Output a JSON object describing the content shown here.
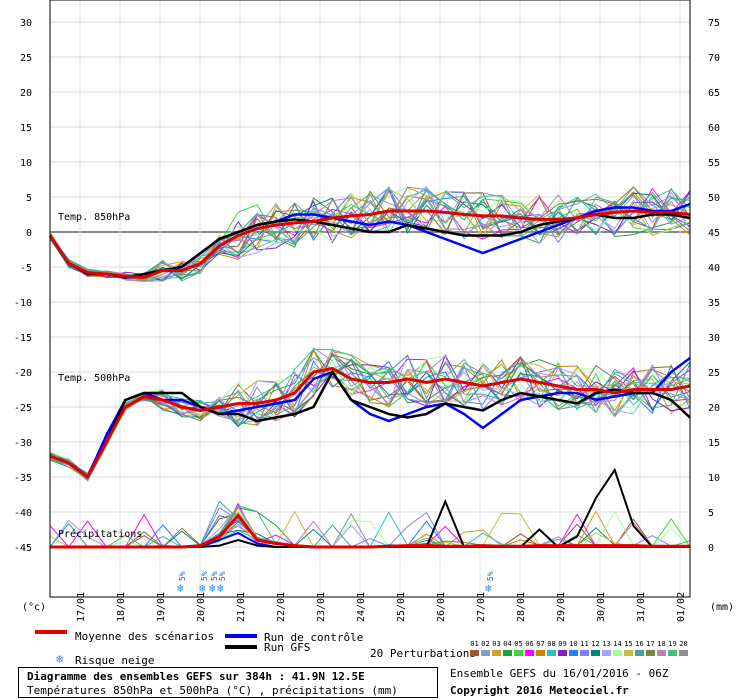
{
  "chart_data": {
    "type": "line",
    "panels": [
      {
        "label": "Temp. 850hPa",
        "unit": "°C"
      },
      {
        "label": "Temp. 500hPa",
        "unit": "°C"
      },
      {
        "label": "Précipitations",
        "unit": "mm"
      }
    ],
    "left_axis_unit": "(°c)",
    "right_axis_unit": "(mm)",
    "left_ticks": [
      30,
      25,
      20,
      15,
      10,
      5,
      0,
      -5,
      -10,
      -15,
      -20,
      -25,
      -30,
      -35,
      -40,
      -45
    ],
    "right_ticks": [
      75,
      70,
      65,
      60,
      55,
      50,
      45,
      40,
      35,
      30,
      25,
      20,
      15,
      10,
      5,
      0
    ],
    "x_ticks": [
      "17/01",
      "18/01",
      "19/01",
      "20/01",
      "21/01",
      "22/01",
      "23/01",
      "24/01",
      "25/01",
      "26/01",
      "27/01",
      "28/01",
      "29/01",
      "30/01",
      "31/01",
      "01/02"
    ],
    "snow_risk": [
      {
        "day": 3.3,
        "label": "5%"
      },
      {
        "day": 3.85,
        "label": "5%"
      },
      {
        "day": 4.1,
        "label": "5%"
      },
      {
        "day": 4.3,
        "label": "5%"
      },
      {
        "day": 11.0,
        "label": "5%"
      }
    ],
    "series": [
      {
        "name": "Moyenne des scénarios",
        "color": "#e00000",
        "t850": [
          -0.5,
          -4.5,
          -5.8,
          -6,
          -6.3,
          -6.5,
          -5.5,
          -5.5,
          -4.5,
          -2,
          -0.5,
          0.5,
          1,
          1.3,
          1.5,
          2,
          2.3,
          2.5,
          3,
          3,
          3,
          2.8,
          2.5,
          2.3,
          2.3,
          2,
          1.8,
          1.8,
          2,
          2.5,
          2.8,
          3,
          2.8,
          2.8,
          2.5
        ],
        "t500": [
          -32,
          -33,
          -35,
          -30,
          -25,
          -23.5,
          -24,
          -25,
          -25.5,
          -25,
          -24.5,
          -24.5,
          -24,
          -23,
          -20,
          -19.5,
          -21,
          -21.5,
          -21.5,
          -21,
          -21.5,
          -21,
          -21.5,
          -22,
          -21.5,
          -21,
          -21.5,
          -22,
          -22.5,
          -22.5,
          -23,
          -22.5,
          -22.5,
          -22.5,
          -22
        ],
        "precip": [
          0,
          0,
          0,
          0,
          0,
          0,
          0,
          0,
          0.2,
          1.5,
          4.5,
          1,
          0.5,
          0.2,
          0,
          0,
          0,
          0,
          0.1,
          0.2,
          0.2,
          0.1,
          0.1,
          0.2,
          0.1,
          0.1,
          0.2,
          0.2,
          0.2,
          0.2,
          0.2,
          0.2,
          0.1,
          0.1,
          0.1
        ]
      },
      {
        "name": "Run de contrôle",
        "color": "#0000ff",
        "t850": [
          -0.5,
          -4.5,
          -6,
          -6,
          -6.5,
          -6,
          -5.5,
          -5,
          -3,
          -1,
          0,
          1,
          1.5,
          2.5,
          2.5,
          2,
          1.5,
          1,
          1.5,
          1,
          0,
          -1,
          -2,
          -3,
          -2,
          -1,
          0,
          1,
          2,
          3,
          3.5,
          3.5,
          3,
          3,
          4
        ],
        "t500": [
          -32,
          -33,
          -35,
          -29,
          -24,
          -23,
          -24,
          -24,
          -25,
          -26,
          -25.5,
          -25,
          -24.5,
          -24,
          -21,
          -20,
          -24,
          -26,
          -27,
          -26,
          -25,
          -24.5,
          -26,
          -28,
          -26,
          -24,
          -23.5,
          -23,
          -23,
          -24,
          -23.5,
          -23,
          -23,
          -20,
          -18
        ],
        "precip": [
          0,
          0,
          0,
          0,
          0,
          0,
          0,
          0,
          0,
          1,
          2,
          0.5,
          0,
          0,
          0,
          0,
          0,
          0,
          0,
          0,
          0,
          0,
          0,
          0,
          0,
          0,
          0,
          0,
          0,
          0,
          0,
          0,
          0,
          0,
          0
        ]
      },
      {
        "name": "Run GFS",
        "color": "#000000",
        "t850": [
          -0.5,
          -4.5,
          -6,
          -6,
          -6.5,
          -6,
          -5.5,
          -5,
          -3,
          -1,
          0,
          1,
          1.5,
          1.8,
          1.5,
          1,
          0.5,
          0,
          0,
          1,
          0.5,
          0,
          -0.5,
          -0.5,
          -0.5,
          0,
          1,
          1.5,
          2,
          2.5,
          2,
          2,
          2.5,
          2.5,
          2
        ],
        "t500": [
          -32,
          -33,
          -35,
          -30,
          -24,
          -23,
          -23,
          -23,
          -25,
          -26,
          -26,
          -27,
          -26.5,
          -26,
          -25,
          -20,
          -24,
          -25,
          -26,
          -26.5,
          -26,
          -24.5,
          -25,
          -25.5,
          -24,
          -23,
          -23.5,
          -24,
          -24.5,
          -23,
          -22.5,
          -23,
          -23,
          -24,
          -26.5
        ],
        "precip": [
          0,
          0,
          0,
          0,
          0,
          0,
          0,
          0,
          0,
          0.2,
          1,
          0.2,
          0,
          0,
          0,
          0,
          0,
          0,
          0,
          0,
          0,
          6.5,
          0,
          0,
          0,
          0,
          2.5,
          0,
          1.5,
          7,
          11,
          3,
          0,
          0,
          0
        ]
      }
    ],
    "perturbation_colors": [
      "#a0522d",
      "#80a0c0",
      "#d0a020",
      "#20a040",
      "#40d040",
      "#ff00ff",
      "#d08000",
      "#30c0c0",
      "#8020c0",
      "#2080ff",
      "#8080ff",
      "#008080",
      "#a0a0ff",
      "#a0ffa0",
      "#c0c040",
      "#40a0a0",
      "#808040",
      "#c080c0",
      "#40c080",
      "#909090"
    ]
  },
  "legend": {
    "mean": "Moyenne des scénarios",
    "control": "Run de contrôle",
    "gfs": "Run GFS",
    "snow": "Risque neige",
    "perturbations": "20 Perturbations",
    "perturbation_numbers": [
      "01",
      "02",
      "03",
      "04",
      "05",
      "06",
      "07",
      "08",
      "09",
      "10",
      "11",
      "12",
      "13",
      "14",
      "15",
      "16",
      "17",
      "18",
      "19",
      "20"
    ]
  },
  "footer": {
    "title": "Diagramme des ensembles GEFS sur 384h : 41.9N 12.5E",
    "subtitle": "Températures 850hPa et 500hPa (°C) , précipitations (mm)",
    "ensemble": "Ensemble GEFS du 16/01/2016 - 06Z",
    "copyright": "Copyright 2016 Meteociel.fr"
  }
}
